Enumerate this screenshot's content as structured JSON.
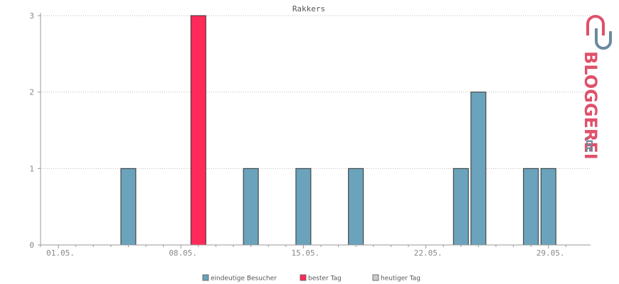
{
  "chart_data": {
    "type": "bar",
    "title": "Rakkers",
    "x_tick_labels": [
      "01.05.",
      "08.05.",
      "15.05.",
      "22.05.",
      "29.05."
    ],
    "x_tick_days": [
      1,
      8,
      15,
      22,
      29
    ],
    "x_range_days": [
      1,
      30
    ],
    "days": [
      1,
      2,
      3,
      4,
      5,
      6,
      7,
      8,
      9,
      10,
      11,
      12,
      13,
      14,
      15,
      16,
      17,
      18,
      19,
      20,
      21,
      22,
      23,
      24,
      25,
      26,
      27,
      28,
      29,
      30
    ],
    "series": [
      {
        "name": "eindeutige Besucher",
        "color": "#6aa3bb",
        "values": [
          0,
          0,
          0,
          0,
          1,
          0,
          0,
          0,
          3,
          0,
          0,
          1,
          0,
          0,
          1,
          0,
          0,
          1,
          0,
          0,
          0,
          0,
          0,
          1,
          2,
          0,
          0,
          1,
          1,
          0
        ]
      }
    ],
    "best_day": 9,
    "ylim": [
      0,
      3
    ],
    "y_ticks": [
      0,
      1,
      2,
      3
    ],
    "grid": true,
    "legend_position": "bottom"
  },
  "legend": [
    {
      "label": "eindeutige Besucher",
      "color": "#6aa3bb"
    },
    {
      "label": "bester Tag",
      "color": "#ff2a5a"
    },
    {
      "label": "heutiger Tag",
      "color": "#cccccc"
    }
  ],
  "logo": {
    "main": "BLOGGEREI",
    "suffix": ".DE",
    "primary_color": "#e0506a",
    "secondary_color": "#6a8aa0"
  }
}
